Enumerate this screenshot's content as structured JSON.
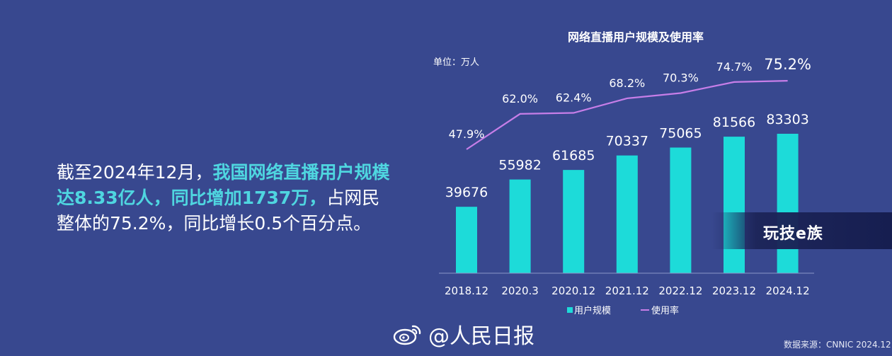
{
  "summary": {
    "part1": "截至2024年12月，",
    "part2": "我国网络直播用户规模达8.33亿人，同比增加1737万，",
    "part3": "占网民整体的75.2%，同比增长0.5个百分点。"
  },
  "chart_data": {
    "type": "bar",
    "title": "网络直播用户规模及使用率",
    "unit_label": "单位：万人",
    "categories": [
      "2018.12",
      "2020.3",
      "2020.12",
      "2021.12",
      "2022.12",
      "2023.12",
      "2024.12"
    ],
    "series": [
      {
        "name": "用户规模",
        "type": "bar",
        "values": [
          39676,
          55982,
          61685,
          70337,
          75065,
          81566,
          83303
        ],
        "color": "#1ddbd9"
      },
      {
        "name": "使用率",
        "type": "line",
        "values": [
          47.9,
          62.0,
          62.4,
          68.2,
          70.3,
          74.7,
          75.2
        ],
        "labels": [
          "47.9%",
          "62.0%",
          "62.4%",
          "68.2%",
          "70.3%",
          "74.7%",
          "75.2%"
        ],
        "color": "#c77ee8"
      }
    ],
    "legend": [
      "用户规模",
      "使用率"
    ],
    "legend_position": "bottom",
    "grid": false
  },
  "watermark": {
    "text": "玩技e族"
  },
  "footer": {
    "text": "@人民日报",
    "icon": "weibo-logo-icon"
  },
  "source": {
    "text": "数据来源：CNNIC 2024.12"
  },
  "colors": {
    "background": "#38488f",
    "bar": "#1ddbd9",
    "line": "#c77ee8",
    "highlight": "#4fd6e0"
  }
}
